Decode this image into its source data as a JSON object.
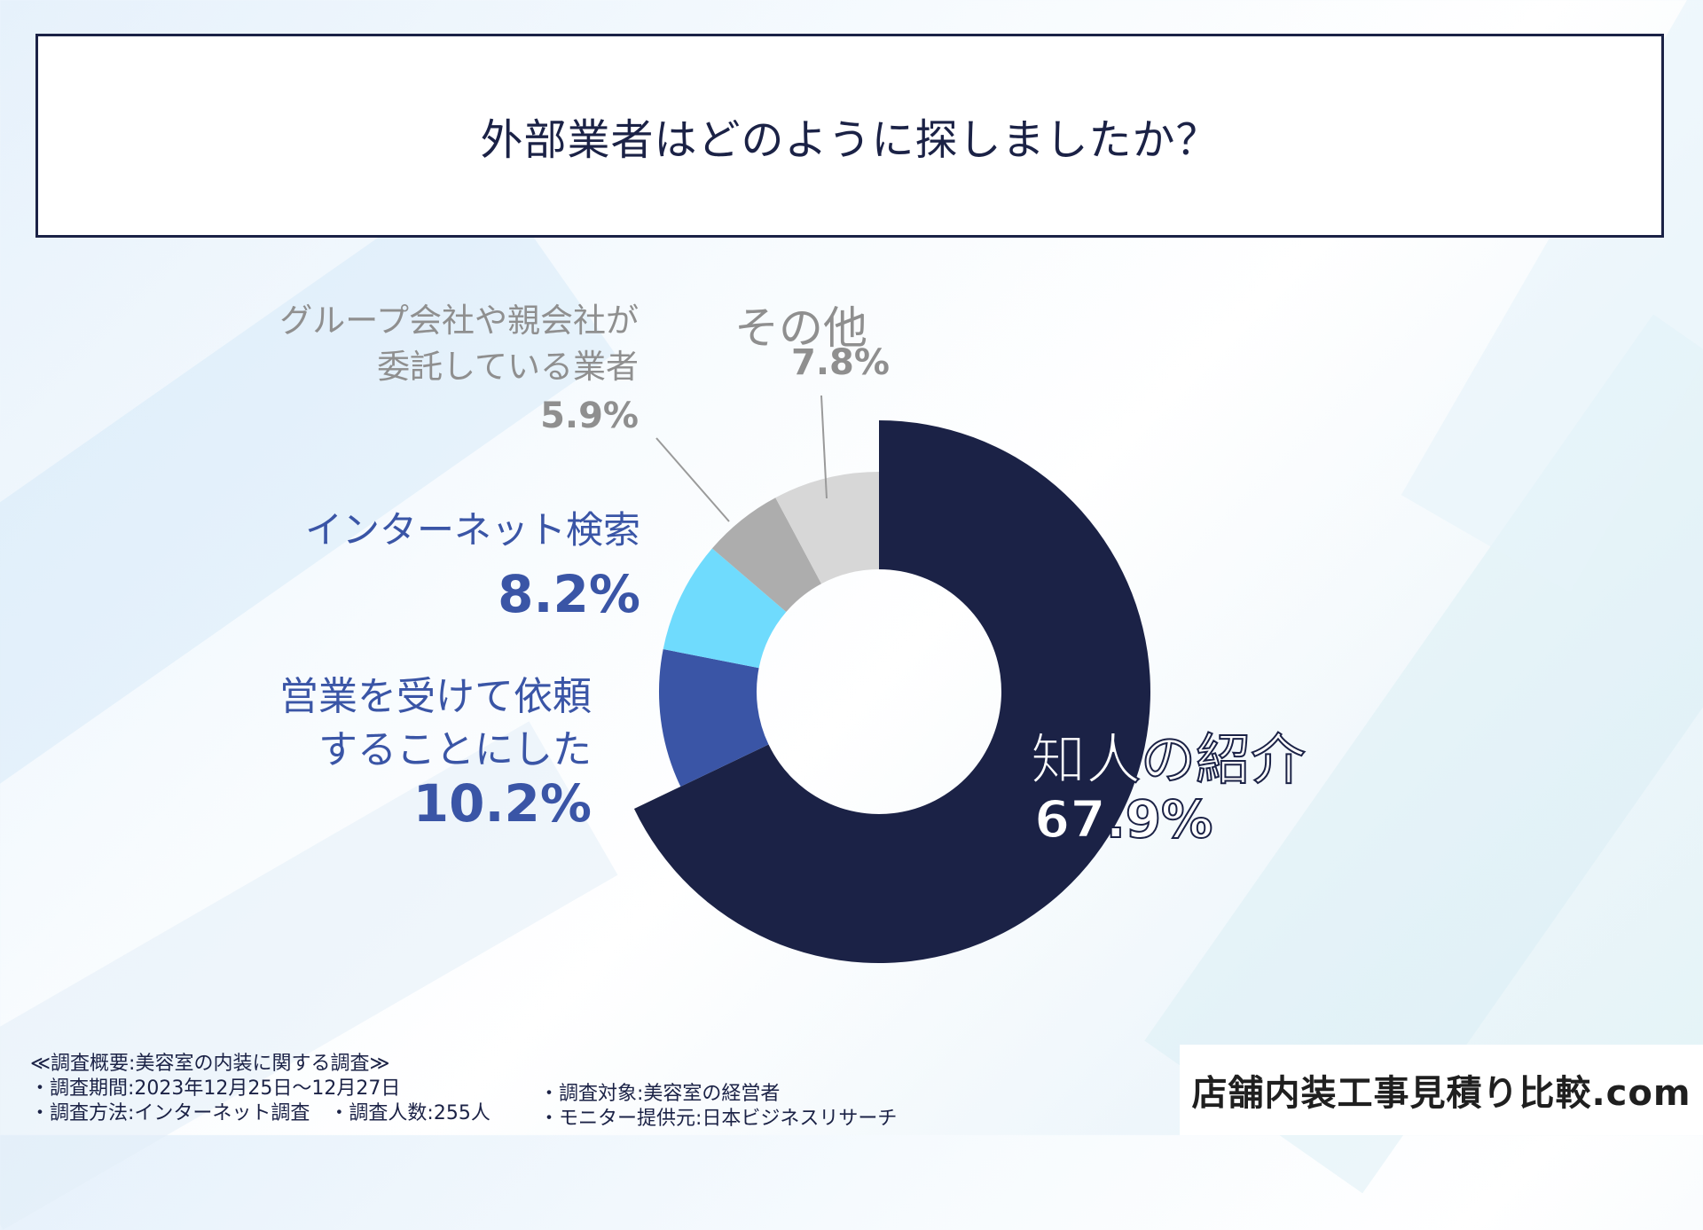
{
  "chart_data": {
    "type": "pie",
    "title": "外部業者はどのように探しましたか？",
    "slices": [
      {
        "name": "知人の紹介",
        "value": 67.9,
        "pct_label": "67.9%",
        "color": "#1b2246"
      },
      {
        "name": "営業を受けて依頼することにした",
        "name_lines": [
          "営業を受けて依頼",
          "することにした"
        ],
        "value": 10.2,
        "pct_label": "10.2%",
        "color": "#3a55a6"
      },
      {
        "name": "インターネット検索",
        "value": 8.2,
        "pct_label": "8.2%",
        "color": "#6fdbfd"
      },
      {
        "name": "グループ会社や親会社が委託している業者",
        "name_lines": [
          "グループ会社や親会社が",
          "委託している業者"
        ],
        "value": 5.9,
        "pct_label": "5.9%",
        "color": "#adadad"
      },
      {
        "name": "その他",
        "value": 7.8,
        "pct_label": "7.8%",
        "color": "#d7d7d7"
      }
    ],
    "donut": true,
    "start": "top",
    "direction": "clockwise",
    "legend": "none"
  },
  "footer": {
    "heading": "≪調査概要:美容室の内装に関する調査≫",
    "period": "・調査期間:2023年12月25日〜12月27日",
    "method": "・調査方法:インターネット調査　・調査人数:255人",
    "target": "・調査対象:美容室の経営者",
    "monitor": "・モニター提供元:日本ビジネスリサーチ"
  },
  "brand": "店舗内装工事見積り比較.com"
}
